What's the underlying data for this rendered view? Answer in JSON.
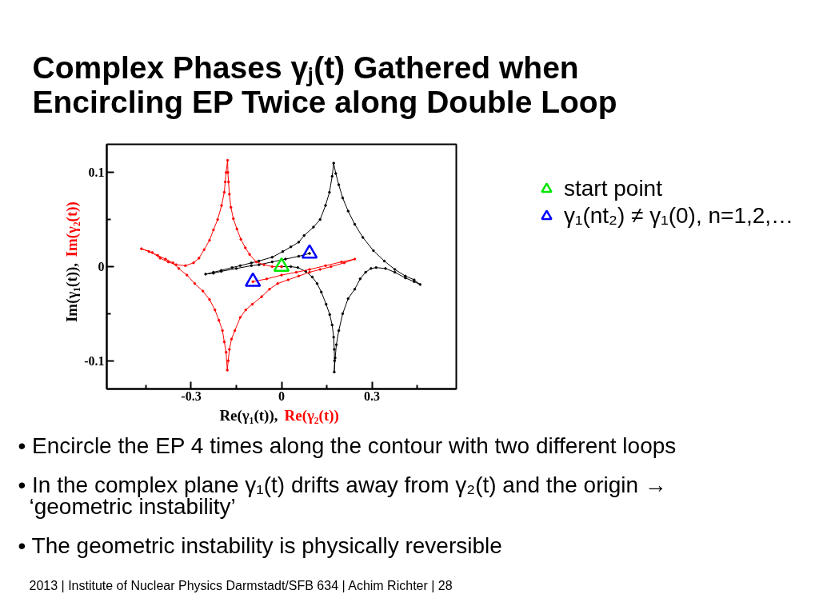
{
  "chart_data": {
    "type": "line",
    "title": "Complex Phases γⱼ(t) Gathered when Encircling EP Twice along Double Loop",
    "xlabel": "Re(γ₁(t)), Re(γ₂(t))",
    "ylabel": "Im(γ₁(t)), Im(γ₂(t))",
    "xlim": [
      -0.58,
      0.58
    ],
    "ylim": [
      -0.13,
      0.13
    ],
    "xticks": [
      {
        "value": -0.45,
        "label": null
      },
      -0.3,
      {
        "value": -0.15,
        "label": null
      },
      0,
      {
        "value": 0.15,
        "label": null
      },
      0.3,
      {
        "value": 0.45,
        "label": null
      }
    ],
    "yticks": [
      -0.1,
      {
        "value": -0.05,
        "label": null
      },
      0,
      {
        "value": 0.05,
        "label": null
      },
      0.1
    ],
    "grid": false,
    "legend": "right",
    "series": [
      {
        "color": "#000000",
        "marker": "circle",
        "x": [
          0,
          0.031,
          0.054,
          0.08,
          0.102,
          0.118,
          0.132,
          0.148,
          0.16,
          0.168,
          0.173,
          0.175,
          0.176,
          0.175,
          0.178,
          0.182,
          0.19,
          0.203,
          0.221,
          0.243,
          0.261,
          0.279,
          0.297,
          0.314,
          0.345,
          0.376,
          0.411,
          0.44,
          0.46,
          0.44,
          0.411,
          0.376,
          0.341,
          0.305,
          0.27,
          0.243,
          0.221,
          0.203,
          0.19,
          0.18,
          0.173,
          0.168,
          0.159,
          0.146,
          0.128,
          0.106,
          0.075,
          0.057,
          0.031,
          0.004,
          -0.031,
          -0.075,
          -0.1,
          -0.137,
          -0.164,
          -0.2,
          -0.226,
          -0.252,
          -0.226,
          -0.2,
          -0.15,
          -0.1,
          -0.075,
          -0.031,
          0.013,
          0.057,
          0.093
        ],
        "values": [
          0,
          0,
          -0.001,
          -0.005,
          -0.011,
          -0.018,
          -0.027,
          -0.04,
          -0.051,
          -0.062,
          -0.075,
          -0.088,
          -0.1,
          -0.112,
          -0.097,
          -0.083,
          -0.068,
          -0.05,
          -0.034,
          -0.024,
          -0.013,
          -0.006,
          -0.002,
          -0.001,
          -0.002,
          -0.006,
          -0.012,
          -0.016,
          -0.019,
          -0.014,
          -0.01,
          -0.003,
          0.006,
          0.017,
          0.031,
          0.045,
          0.059,
          0.073,
          0.087,
          0.099,
          0.11,
          0.096,
          0.079,
          0.065,
          0.05,
          0.042,
          0.033,
          0.026,
          0.021,
          0.016,
          0.01,
          0.006,
          0.004,
          0.001,
          -0.001,
          -0.004,
          -0.006,
          -0.008,
          -0.007,
          -0.005,
          -0.002,
          0.001,
          0.002,
          0.005,
          0.008,
          0.011,
          0.014
        ]
      },
      {
        "color": "#ff0000",
        "marker": "circle",
        "x": [
          0,
          -0.031,
          -0.058,
          -0.084,
          -0.106,
          -0.12,
          -0.135,
          -0.148,
          -0.16,
          -0.168,
          -0.173,
          -0.176,
          -0.178,
          -0.179,
          -0.184,
          -0.187,
          -0.19,
          -0.199,
          -0.212,
          -0.226,
          -0.239,
          -0.257,
          -0.274,
          -0.292,
          -0.319,
          -0.35,
          -0.376,
          -0.403,
          -0.429,
          -0.465,
          -0.44,
          -0.411,
          -0.385,
          -0.36,
          -0.341,
          -0.314,
          -0.288,
          -0.261,
          -0.239,
          -0.221,
          -0.208,
          -0.196,
          -0.19,
          -0.184,
          -0.18,
          -0.177,
          -0.173,
          -0.166,
          -0.155,
          -0.137,
          -0.119,
          -0.097,
          -0.066,
          -0.04,
          -0.013,
          0.022,
          0.057,
          0.093,
          0.128,
          0.164,
          0.208,
          0.243,
          0.199,
          0.146,
          0.093,
          0.049,
          0,
          -0.049,
          -0.095
        ],
        "values": [
          0,
          0,
          0.002,
          0.005,
          0.013,
          0.02,
          0.029,
          0.04,
          0.051,
          0.063,
          0.077,
          0.09,
          0.1,
          0.113,
          0.1,
          0.09,
          0.079,
          0.065,
          0.05,
          0.039,
          0.028,
          0.018,
          0.009,
          0.004,
          0.001,
          0.002,
          0.005,
          0.009,
          0.015,
          0.019,
          0.016,
          0.012,
          0.008,
          0.004,
          -0.002,
          -0.009,
          -0.018,
          -0.026,
          -0.035,
          -0.046,
          -0.057,
          -0.068,
          -0.08,
          -0.091,
          -0.11,
          -0.1,
          -0.088,
          -0.077,
          -0.068,
          -0.054,
          -0.046,
          -0.04,
          -0.032,
          -0.024,
          -0.018,
          -0.014,
          -0.01,
          -0.006,
          -0.003,
          0,
          0.004,
          0.008,
          0.005,
          0.001,
          -0.003,
          -0.006,
          -0.009,
          -0.013,
          -0.016
        ]
      },
      {
        "type": "scatter",
        "name": "start point",
        "color": "#00e600",
        "marker": "triangle",
        "x": [
          0
        ],
        "values": [
          0
        ]
      },
      {
        "type": "scatter",
        "name": "γ₁(nt₂) ≠ γ₁(0), n=1,2,…",
        "color": "#0000ff",
        "marker": "triangle",
        "x": [
          0.093,
          -0.095
        ],
        "values": [
          0.014,
          -0.016
        ]
      }
    ],
    "annotations": [
      "• Encircle the EP 4 times along the contour with two different loops",
      "• In the complex plane γ₁(t) drifts away from γ₂(t) and the origin → ‘geometric instability’",
      "• The geometric instability is physically reversible",
      "2013 | Institute of Nuclear Physics Darmstadt/SFB 634 | Achim Richter | 28"
    ]
  }
}
